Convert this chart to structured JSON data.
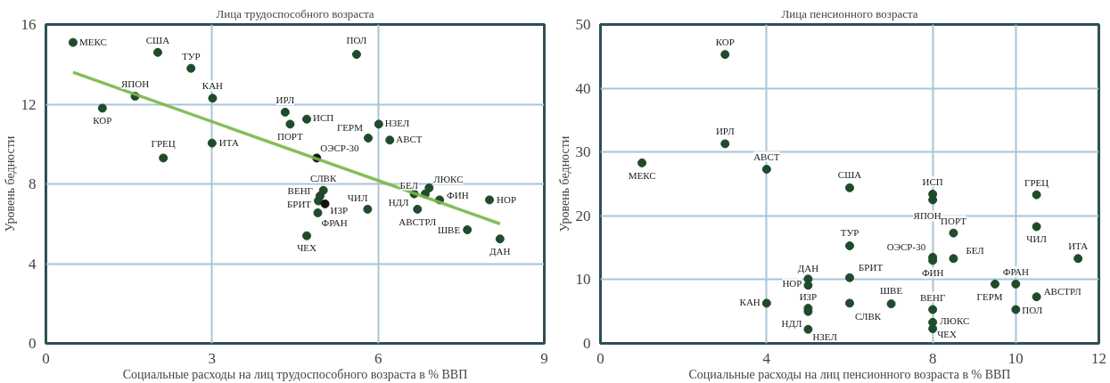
{
  "chart_data": [
    {
      "type": "scatter",
      "title": "Лица трудоспособного возраста",
      "xlabel": "Социальные расходы на лиц трудоспособного возраста в % ВВП",
      "ylabel": "Уровень бедности",
      "xlim": [
        0,
        9
      ],
      "ylim": [
        0,
        16
      ],
      "xticks": [
        0,
        3,
        6,
        9
      ],
      "yticks": [
        0,
        4,
        8,
        12,
        16
      ],
      "grid": true,
      "series": [
        {
          "marker": "circle",
          "x": [
            0.49,
            2.02,
            2.62,
            1.61,
            3.01,
            1.02,
            4.32,
            4.71,
            4.41,
            3.0,
            2.12,
            4.89,
            5.61,
            5.82,
            6.01,
            6.21,
            5.01,
            4.95,
            4.92,
            5.04,
            4.91,
            4.71,
            5.81,
            6.85,
            6.65,
            6.92,
            7.11,
            8.01,
            6.71,
            7.61,
            8.2
          ],
          "values": [
            15.1,
            14.6,
            13.8,
            12.4,
            12.3,
            11.8,
            11.6,
            11.25,
            11.0,
            10.05,
            9.3,
            9.3,
            14.5,
            10.3,
            11.0,
            10.2,
            7.68,
            7.4,
            7.15,
            7.0,
            6.55,
            5.4,
            6.73,
            7.5,
            7.5,
            7.8,
            7.2,
            7.2,
            6.73,
            5.7,
            5.24
          ],
          "colors": [
            "#1f4a2c",
            "#1f4a2c",
            "#1f4a2c",
            "#1f4a2c",
            "#1f4a2c",
            "#1f4a2c",
            "#1f4a2c",
            "#1f4a2c",
            "#1f4a2c",
            "#1f4a2c",
            "#1f4a2c",
            "#111111",
            "#1f4a2c",
            "#1f4a2c",
            "#1f4a2c",
            "#1f4a2c",
            "#1f4a2c",
            "#1f4a2c",
            "#1f4a2c",
            "#111111",
            "#1f4a2c",
            "#1f4a2c",
            "#1f4a2c",
            "#1f4a2c",
            "#1f4a2c",
            "#1f4a2c",
            "#1f4a2c",
            "#1f4a2c",
            "#1f4a2c",
            "#1f4a2c",
            "#1f4a2c"
          ]
        },
        {
          "type": "line",
          "x": [
            0.49,
            8.2
          ],
          "values": [
            13.6,
            6.0
          ],
          "color": "#7ab648"
        }
      ],
      "annotations": [
        {
          "text": "МЕКС",
          "x": 0.49,
          "y": 15.1
        },
        {
          "text": "США",
          "x": 2.02,
          "y": 14.6
        },
        {
          "text": "ТУР",
          "x": 2.62,
          "y": 13.8
        },
        {
          "text": "ЯПОН",
          "x": 1.61,
          "y": 12.4
        },
        {
          "text": "КАН",
          "x": 3.01,
          "y": 12.3
        },
        {
          "text": "КОР",
          "x": 1.02,
          "y": 11.8
        },
        {
          "text": "ИРЛ",
          "x": 4.32,
          "y": 11.6
        },
        {
          "text": "ИСП",
          "x": 4.71,
          "y": 11.25
        },
        {
          "text": "ПОРТ",
          "x": 4.41,
          "y": 11.0
        },
        {
          "text": "ИТА",
          "x": 3.0,
          "y": 10.05
        },
        {
          "text": "ГРЕЦ",
          "x": 2.12,
          "y": 9.3
        },
        {
          "text": "ОЭСР-30",
          "x": 4.89,
          "y": 9.3
        },
        {
          "text": "ПОЛ",
          "x": 5.61,
          "y": 14.5
        },
        {
          "text": "ГЕРМ",
          "x": 5.82,
          "y": 10.3
        },
        {
          "text": "НЗЕЛ",
          "x": 6.01,
          "y": 11.0
        },
        {
          "text": "АВСТ",
          "x": 6.21,
          "y": 10.2
        },
        {
          "text": "СЛВК",
          "x": 5.01,
          "y": 7.68
        },
        {
          "text": "ВЕНГ",
          "x": 4.95,
          "y": 7.4
        },
        {
          "text": "БРИТ",
          "x": 4.92,
          "y": 7.15
        },
        {
          "text": "ИЗР",
          "x": 5.04,
          "y": 7.0
        },
        {
          "text": "ФРАН",
          "x": 4.91,
          "y": 6.55
        },
        {
          "text": "ЧЕХ",
          "x": 4.71,
          "y": 5.4
        },
        {
          "text": "ЧИЛ",
          "x": 5.81,
          "y": 6.73
        },
        {
          "text": "БЕЛ",
          "x": 6.85,
          "y": 7.5
        },
        {
          "text": "НДЛ",
          "x": 6.65,
          "y": 7.5
        },
        {
          "text": "ЛЮКС",
          "x": 6.92,
          "y": 7.8
        },
        {
          "text": "ФИН",
          "x": 7.11,
          "y": 7.2
        },
        {
          "text": "НОР",
          "x": 8.01,
          "y": 7.2
        },
        {
          "text": "АВСТРЛ",
          "x": 6.71,
          "y": 6.73
        },
        {
          "text": "ШВЕ",
          "x": 7.61,
          "y": 5.7
        },
        {
          "text": "ДАН",
          "x": 8.2,
          "y": 5.24
        }
      ]
    },
    {
      "type": "scatter",
      "title": "Лица пенсионного возраста",
      "xlabel": "Социальные расходы на лиц пенсионного возраста в % ВВП",
      "ylabel": "Уровень бедности",
      "xlim": [
        0,
        12
      ],
      "ylim": [
        0,
        50
      ],
      "xticks": [
        0,
        4,
        8,
        10,
        12
      ],
      "yticks": [
        0,
        10,
        20,
        30,
        40,
        50
      ],
      "grid": true,
      "series": [
        {
          "x": [
            3,
            3,
            1,
            4,
            6,
            8,
            8,
            10.5,
            10.5,
            8.5,
            6,
            8,
            8.5,
            11.5,
            8,
            5,
            5,
            6,
            9.5,
            10,
            10.5,
            4,
            5,
            6,
            7,
            8,
            10,
            8,
            8,
            5,
            5
          ],
          "values": [
            45.3,
            31.3,
            28.3,
            27.3,
            24.4,
            23.4,
            22.5,
            23.3,
            18.3,
            17.3,
            15.3,
            13.5,
            13.3,
            13.3,
            13.0,
            10.1,
            9.1,
            10.3,
            9.3,
            9.3,
            7.3,
            6.3,
            5.5,
            6.3,
            6.2,
            5.3,
            5.3,
            3.3,
            2.3,
            5.0,
            2.2
          ],
          "color": "#1f4a2c",
          "marker": "circle"
        }
      ],
      "annotations": [
        {
          "text": "КОР",
          "x": 3,
          "y": 45.3
        },
        {
          "text": "ИРЛ",
          "x": 3,
          "y": 31.3
        },
        {
          "text": "МЕКС",
          "x": 1,
          "y": 28.3
        },
        {
          "text": "АВСТ",
          "x": 4,
          "y": 27.3
        },
        {
          "text": "США",
          "x": 6,
          "y": 24.4
        },
        {
          "text": "ИСП",
          "x": 8,
          "y": 23.4
        },
        {
          "text": "ЯПОН",
          "x": 8,
          "y": 22.5
        },
        {
          "text": "ГРЕЦ",
          "x": 10.5,
          "y": 23.3
        },
        {
          "text": "ЧИЛ",
          "x": 10.5,
          "y": 18.3
        },
        {
          "text": "ПОРТ",
          "x": 8.5,
          "y": 17.3
        },
        {
          "text": "ТУР",
          "x": 6,
          "y": 15.3
        },
        {
          "text": "ОЭСР-30",
          "x": 8,
          "y": 13.5
        },
        {
          "text": "БЕЛ",
          "x": 8.5,
          "y": 13.3
        },
        {
          "text": "ИТА",
          "x": 11.5,
          "y": 13.3
        },
        {
          "text": "ФИН",
          "x": 8,
          "y": 13.0
        },
        {
          "text": "ДАН",
          "x": 5,
          "y": 10.1
        },
        {
          "text": "НОР",
          "x": 5,
          "y": 9.1
        },
        {
          "text": "БРИТ",
          "x": 6,
          "y": 10.3
        },
        {
          "text": "ГЕРМ",
          "x": 9.5,
          "y": 9.3
        },
        {
          "text": "ФРАН",
          "x": 10,
          "y": 9.3
        },
        {
          "text": "АВСТРЛ",
          "x": 10.5,
          "y": 7.3
        },
        {
          "text": "КАН",
          "x": 4,
          "y": 6.3
        },
        {
          "text": "ИЗР",
          "x": 5,
          "y": 5.5
        },
        {
          "text": "СЛВК",
          "x": 6,
          "y": 6.3
        },
        {
          "text": "ШВЕ",
          "x": 7,
          "y": 6.2
        },
        {
          "text": "ВЕНГ",
          "x": 8,
          "y": 5.3
        },
        {
          "text": "ПОЛ",
          "x": 10,
          "y": 5.3
        },
        {
          "text": "ЛЮКС",
          "x": 8,
          "y": 3.3
        },
        {
          "text": "ЧЕХ",
          "x": 8,
          "y": 2.3
        },
        {
          "text": "НДЛ",
          "x": 5,
          "y": 5.0
        },
        {
          "text": "НЗЕЛ",
          "x": 5,
          "y": 2.2
        }
      ]
    }
  ]
}
